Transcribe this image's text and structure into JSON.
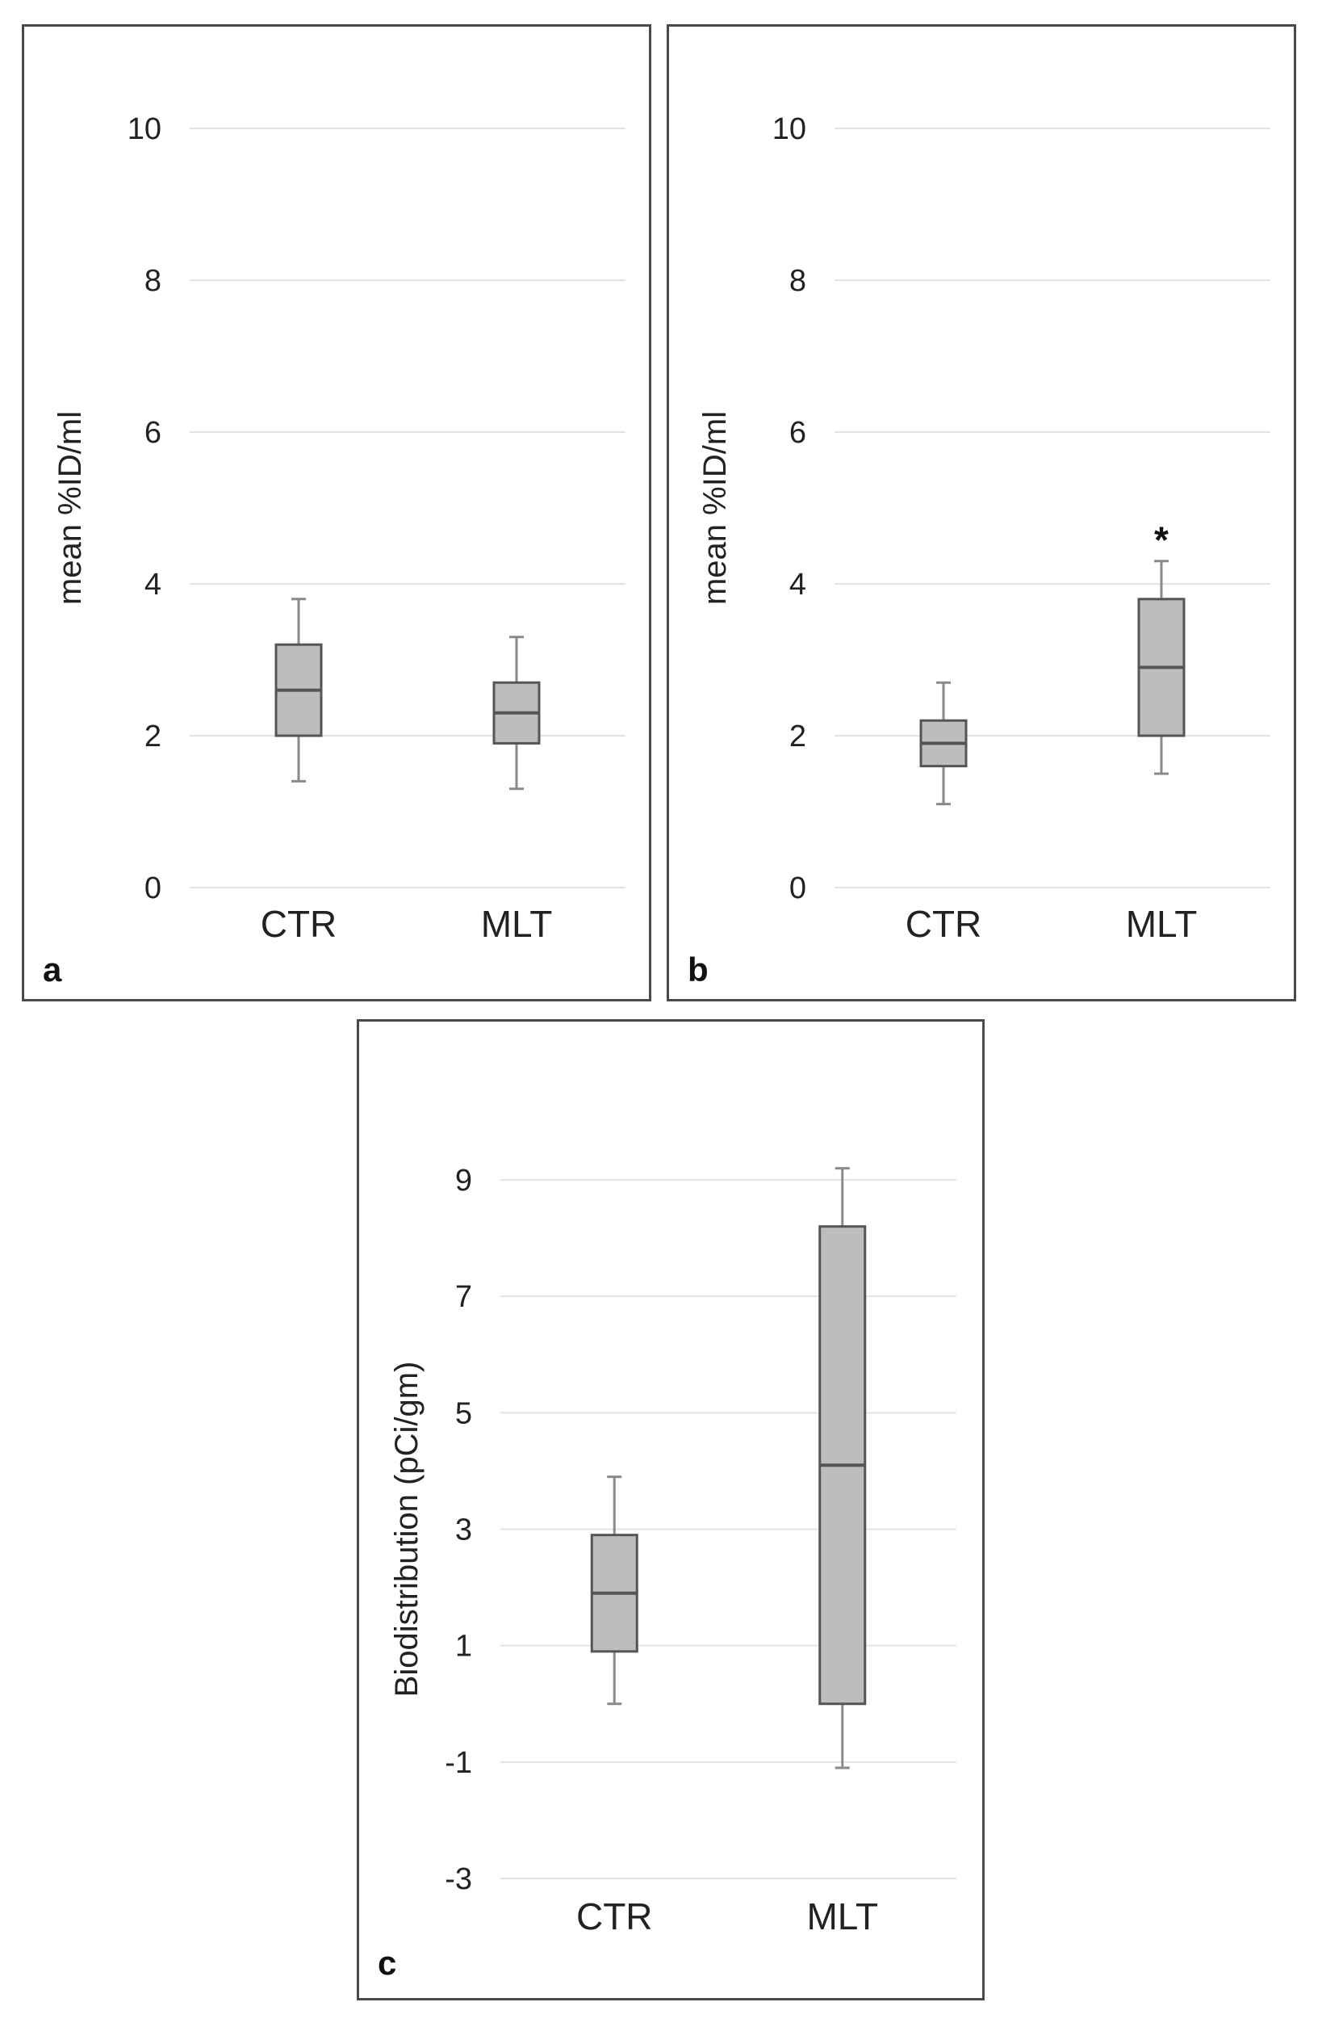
{
  "colors": {
    "box_fill": "#bdbdbd",
    "box_stroke": "#555555",
    "grid": "#e3e3e3",
    "whisker": "#8a8a8a"
  },
  "chart_data": [
    {
      "type": "boxplot",
      "panel_label": "a",
      "ylabel": "mean %ID/ml",
      "xlabel": "",
      "ylim": [
        0,
        10
      ],
      "yticks": [
        0,
        2,
        4,
        6,
        8,
        10
      ],
      "ytick_labels": [
        "0",
        "2",
        "4",
        "6",
        "8",
        "10"
      ],
      "categories": [
        "CTR",
        "MLT"
      ],
      "boxes": [
        {
          "min": 1.4,
          "q1": 2.0,
          "median": 2.6,
          "q3": 3.2,
          "max": 3.8
        },
        {
          "min": 1.3,
          "q1": 1.9,
          "median": 2.3,
          "q3": 2.7,
          "max": 3.3
        }
      ],
      "annotations": []
    },
    {
      "type": "boxplot",
      "panel_label": "b",
      "ylabel": "mean %ID/ml",
      "xlabel": "",
      "ylim": [
        0,
        10
      ],
      "yticks": [
        0,
        2,
        4,
        6,
        8,
        10
      ],
      "ytick_labels": [
        "0",
        "2",
        "4",
        "6",
        "8",
        "10"
      ],
      "categories": [
        "CTR",
        "MLT"
      ],
      "boxes": [
        {
          "min": 1.1,
          "q1": 1.6,
          "median": 1.9,
          "q3": 2.2,
          "max": 2.7
        },
        {
          "min": 1.5,
          "q1": 2.0,
          "median": 2.9,
          "q3": 3.8,
          "max": 4.3
        }
      ],
      "annotations": [
        {
          "text": "*",
          "category_index": 1,
          "y": 4.6
        }
      ]
    },
    {
      "type": "boxplot",
      "panel_label": "c",
      "ylabel": "Biodistribution (pCi/gm)",
      "xlabel": "",
      "ylim": [
        -3,
        9
      ],
      "yticks": [
        -3,
        -1,
        1,
        3,
        5,
        7,
        9
      ],
      "ytick_labels": [
        "-3",
        "-1",
        "1",
        "3",
        "5",
        "7",
        "9"
      ],
      "categories": [
        "CTR",
        "MLT"
      ],
      "boxes": [
        {
          "min": 0.0,
          "q1": 0.9,
          "median": 1.9,
          "q3": 2.9,
          "max": 3.9
        },
        {
          "min": -1.1,
          "q1": 0.0,
          "median": 4.1,
          "q3": 8.2,
          "max": 9.2
        }
      ],
      "annotations": []
    }
  ]
}
